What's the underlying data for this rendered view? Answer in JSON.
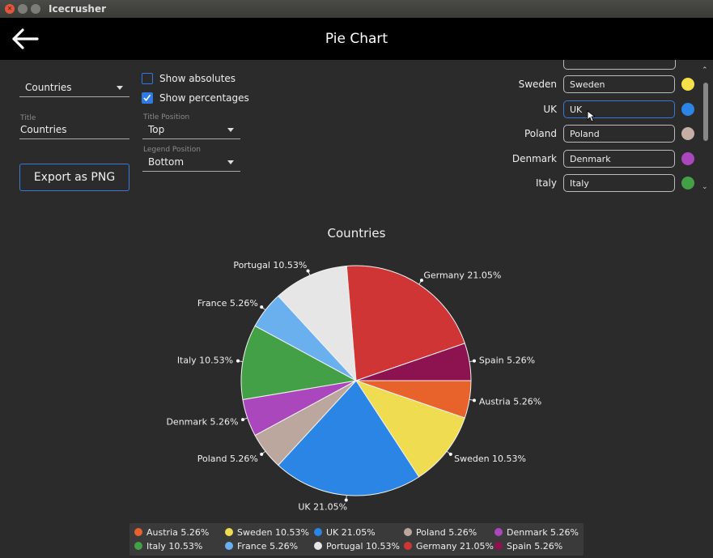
{
  "window": {
    "title": "Icecrusher"
  },
  "appbar": {
    "title": "Pie Chart"
  },
  "controls": {
    "dataset": "Countries",
    "show_absolutes_label": "Show absolutes",
    "show_absolutes": false,
    "show_percentages_label": "Show percentages",
    "show_percentages": true,
    "title_label": "Title",
    "title_value": "Countries",
    "title_position_label": "Title Position",
    "title_position": "Top",
    "legend_position_label": "Legend Position",
    "legend_position": "Bottom",
    "export_label": "Export as PNG"
  },
  "series_list": [
    {
      "label": "Sweden",
      "value": "Sweden",
      "color": "#f5e04a"
    },
    {
      "label": "UK",
      "value": "UK",
      "color": "#2b85e4"
    },
    {
      "label": "Poland",
      "value": "Poland",
      "color": "#c5aea6"
    },
    {
      "label": "Denmark",
      "value": "Denmark",
      "color": "#ab47bc"
    },
    {
      "label": "Italy",
      "value": "Italy",
      "color": "#43a047"
    }
  ],
  "chart_data": {
    "type": "pie",
    "title": "Countries",
    "legend_position": "bottom",
    "slices": [
      {
        "name": "Austria",
        "value": 5.26,
        "label": "Austria 5.26%",
        "color": "#e8622c"
      },
      {
        "name": "Sweden",
        "value": 10.53,
        "label": "Sweden 10.53%",
        "color": "#f0dc50"
      },
      {
        "name": "UK",
        "value": 21.05,
        "label": "UK 21.05%",
        "color": "#2b85e4"
      },
      {
        "name": "Poland",
        "value": 5.26,
        "label": "Poland 5.26%",
        "color": "#bca79f"
      },
      {
        "name": "Denmark",
        "value": 5.26,
        "label": "Denmark 5.26%",
        "color": "#ab47bc"
      },
      {
        "name": "Italy",
        "value": 10.53,
        "label": "Italy 10.53%",
        "color": "#43a047"
      },
      {
        "name": "France",
        "value": 5.26,
        "label": "France 5.26%",
        "color": "#6ab0ee"
      },
      {
        "name": "Portugal",
        "value": 10.53,
        "label": "Portugal 10.53%",
        "color": "#e6e6e6"
      },
      {
        "name": "Germany",
        "value": 21.05,
        "label": "Germany 21.05%",
        "color": "#cf3535"
      },
      {
        "name": "Spain",
        "value": 5.26,
        "label": "Spain 5.26%",
        "color": "#8c1350"
      }
    ]
  }
}
